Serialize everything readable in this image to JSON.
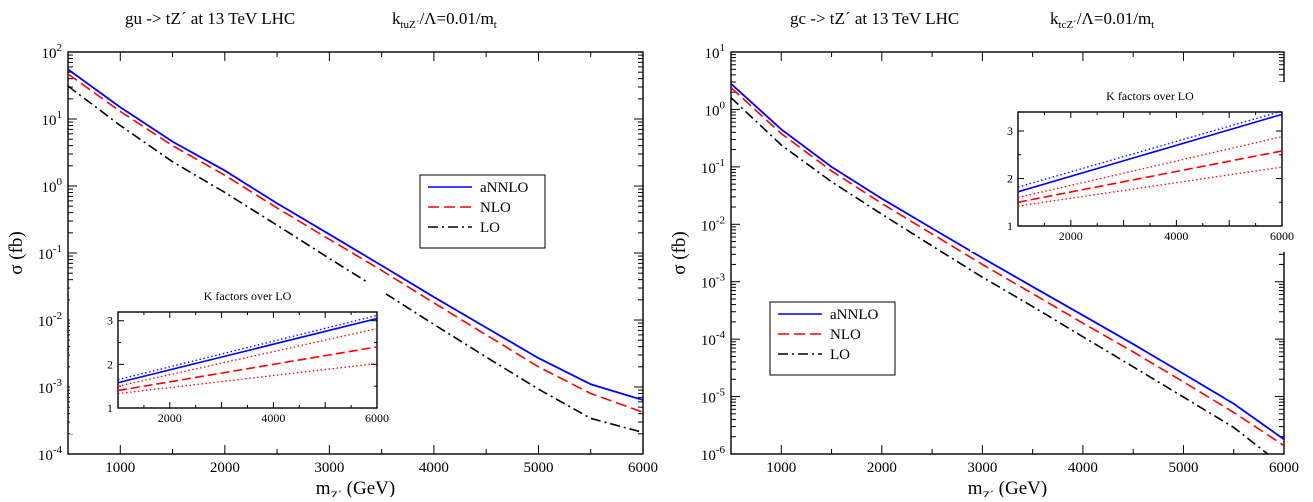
{
  "chart_data": [
    {
      "type": "line",
      "title_process": "gu -> tZ´  at  13 TeV   LHC",
      "title_k_main": "k",
      "title_k_sub": "tuZ´",
      "title_rest": "/Λ=0.01/m",
      "title_rest_sub": "t",
      "xlabel": "m",
      "xlabel_sub": "Z´",
      "xlabel_unit": " (GeV)",
      "ylabel": "σ (fb)",
      "xlim": [
        500,
        6000
      ],
      "ylim_log10": [
        -4,
        2
      ],
      "y_scale": "log",
      "x_ticks": [
        "1000",
        "2000",
        "3000",
        "4000",
        "5000",
        "6000"
      ],
      "y_ticks": [
        {
          "base": "10",
          "exp": "-4"
        },
        {
          "base": "10",
          "exp": "-3"
        },
        {
          "base": "10",
          "exp": "-2"
        },
        {
          "base": "10",
          "exp": "-1"
        },
        {
          "base": "10",
          "exp": "0"
        },
        {
          "base": "10",
          "exp": "1"
        },
        {
          "base": "10",
          "exp": "2"
        }
      ],
      "legend_position": "center-right",
      "x": [
        500,
        1000,
        1500,
        2000,
        2500,
        3000,
        3500,
        4000,
        4500,
        5000,
        5500,
        6000
      ],
      "series": [
        {
          "name": "aNNLO",
          "color": "#0000ff",
          "style": "solid",
          "values": [
            55,
            15,
            4.6,
            1.7,
            0.55,
            0.19,
            0.065,
            0.022,
            0.0077,
            0.0027,
            0.0011,
            0.00064
          ]
        },
        {
          "name": "NLO",
          "color": "#ff0000",
          "style": "dashed",
          "values": [
            47,
            13,
            4.0,
            1.45,
            0.47,
            0.16,
            0.055,
            0.018,
            0.006,
            0.002,
            0.0008,
            0.00042
          ]
        },
        {
          "name": "LO",
          "color": "#000000",
          "style": "dashdot",
          "values": [
            31,
            8.0,
            2.3,
            0.8,
            0.26,
            0.083,
            0.027,
            0.0086,
            0.0028,
            0.00093,
            0.00034,
            0.00021
          ]
        }
      ],
      "inset": {
        "title": "K factors over LO",
        "xlim": [
          1000,
          6000
        ],
        "ylim": [
          1,
          3.2
        ],
        "x_ticks": [
          "2000",
          "4000",
          "6000"
        ],
        "y_ticks": [
          "1",
          "2",
          "3"
        ],
        "x": [
          1000,
          6000
        ],
        "series": [
          {
            "name": "aNNLO",
            "color": "#0000ff",
            "style": "solid",
            "values": [
              1.58,
              3.05
            ]
          },
          {
            "name": "aNNLO scale variation",
            "color": "#0000ff",
            "style": "dotted",
            "values": [
              1.65,
              3.12
            ]
          },
          {
            "name": "NLO",
            "color": "#ff0000",
            "style": "dashed",
            "values": [
              1.4,
              2.4
            ]
          },
          {
            "name": "NLO scale upper",
            "color": "#ff0000",
            "style": "dotted",
            "values": [
              1.5,
              2.82
            ]
          },
          {
            "name": "NLO scale lower",
            "color": "#ff0000",
            "style": "dotted",
            "values": [
              1.33,
              2.02
            ]
          }
        ]
      }
    },
    {
      "type": "line",
      "title_process": "gc -> tZ´  at  13 TeV   LHC",
      "title_k_main": "k",
      "title_k_sub": "tcZ´",
      "title_rest": "/Λ=0.01/m",
      "title_rest_sub": "t",
      "xlabel": "m",
      "xlabel_sub": "Z´",
      "xlabel_unit": " (GeV)",
      "ylabel": "σ (fb)",
      "xlim": [
        500,
        6000
      ],
      "ylim_log10": [
        -6,
        1
      ],
      "y_scale": "log",
      "x_ticks": [
        "1000",
        "2000",
        "3000",
        "4000",
        "5000",
        "6000"
      ],
      "y_ticks": [
        {
          "base": "10",
          "exp": "-6"
        },
        {
          "base": "10",
          "exp": "-5"
        },
        {
          "base": "10",
          "exp": "-4"
        },
        {
          "base": "10",
          "exp": "-3"
        },
        {
          "base": "10",
          "exp": "-2"
        },
        {
          "base": "10",
          "exp": "-1"
        },
        {
          "base": "10",
          "exp": "0"
        },
        {
          "base": "10",
          "exp": "1"
        }
      ],
      "legend_position": "bottom-left",
      "x": [
        500,
        1000,
        1500,
        2000,
        2500,
        3000,
        3500,
        4000,
        4500,
        5000,
        5500,
        6000
      ],
      "series": [
        {
          "name": "aNNLO",
          "color": "#0000ff",
          "style": "solid",
          "values": [
            2.8,
            0.45,
            0.1,
            0.028,
            0.0085,
            0.0026,
            0.00082,
            0.00026,
            8.2e-05,
            2.5e-05,
            7.5e-06,
            1.8e-06
          ]
        },
        {
          "name": "NLO",
          "color": "#ff0000",
          "style": "dashed",
          "values": [
            2.4,
            0.38,
            0.085,
            0.023,
            0.0068,
            0.002,
            0.00062,
            0.00019,
            6e-05,
            1.8e-05,
            5.3e-06,
            1.4e-06
          ]
        },
        {
          "name": "LO",
          "color": "#000000",
          "style": "dashdot",
          "values": [
            1.6,
            0.24,
            0.055,
            0.015,
            0.0042,
            0.0012,
            0.00037,
            0.00011,
            3.3e-05,
            9.8e-06,
            2.9e-06,
            6e-07
          ]
        }
      ],
      "inset": {
        "title": "K factors over LO",
        "xlim": [
          1000,
          6000
        ],
        "ylim": [
          1,
          3.4
        ],
        "x_ticks": [
          "2000",
          "4000",
          "6000"
        ],
        "y_ticks": [
          "1",
          "2",
          "3"
        ],
        "x": [
          1000,
          6000
        ],
        "series": [
          {
            "name": "aNNLO",
            "color": "#0000ff",
            "style": "solid",
            "values": [
              1.72,
              3.35
            ]
          },
          {
            "name": "aNNLO scale variation",
            "color": "#0000ff",
            "style": "dotted",
            "values": [
              1.82,
              3.42
            ]
          },
          {
            "name": "NLO",
            "color": "#ff0000",
            "style": "dashed",
            "values": [
              1.5,
              2.58
            ]
          },
          {
            "name": "NLO scale upper",
            "color": "#ff0000",
            "style": "dotted",
            "values": [
              1.6,
              2.88
            ]
          },
          {
            "name": "NLO scale lower",
            "color": "#ff0000",
            "style": "dotted",
            "values": [
              1.42,
              2.24
            ]
          }
        ]
      }
    }
  ]
}
